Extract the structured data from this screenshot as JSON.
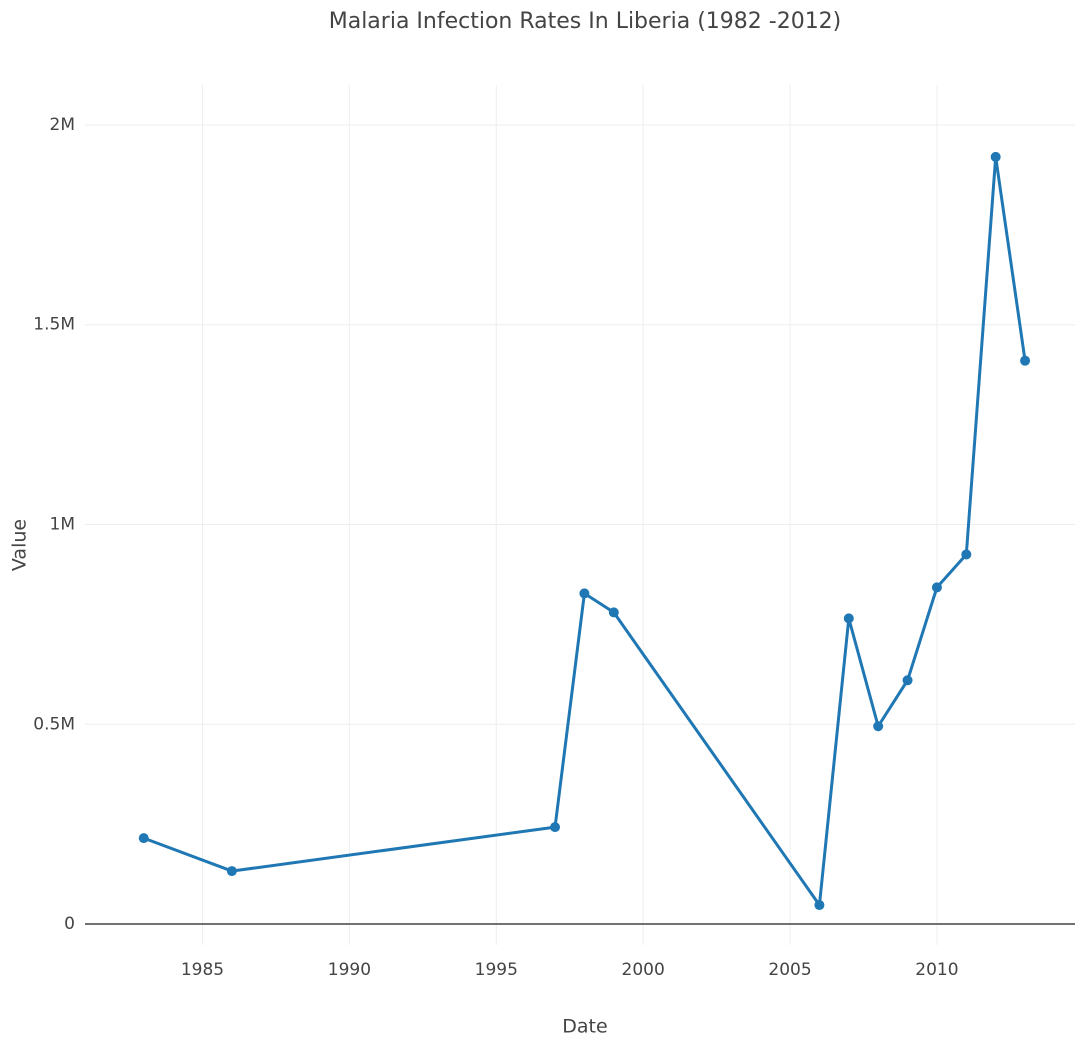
{
  "chart_data": {
    "type": "line",
    "title": "Malaria Infection Rates In Liberia (1982 -2012)",
    "x_label": "Date",
    "y_label": "Value",
    "x": [
      1983,
      1986,
      1997,
      1998,
      1999,
      2006,
      2007,
      2008,
      2009,
      2010,
      2011,
      2012,
      2013
    ],
    "series": [
      {
        "name": "Value",
        "color": "#1f77b4",
        "values": [
          215000,
          132500,
          242500,
          827500,
          780000,
          47500,
          765000,
          495000,
          610000,
          842500,
          925000,
          1920000,
          1410000
        ]
      }
    ],
    "xlim": [
      1981,
      2014.7
    ],
    "xticks": [
      1985,
      1990,
      1995,
      2000,
      2005,
      2010
    ],
    "ylim": [
      -52500,
      2100000
    ],
    "yticks": [
      0,
      {
        "value": 500000,
        "label": "0.5M"
      },
      {
        "value": 1000000,
        "label": "1M"
      },
      {
        "value": 1500000,
        "label": "1.5M"
      },
      {
        "value": 2000000,
        "label": "2M"
      }
    ],
    "grid": true
  }
}
